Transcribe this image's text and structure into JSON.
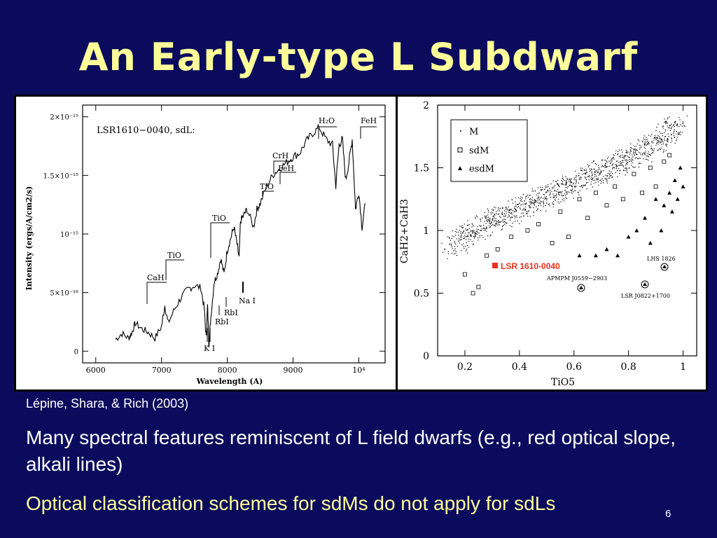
{
  "slide": {
    "title": "An Early-type L Subdwarf",
    "citation": "Lépine, Shara, & Rich (2003)",
    "para1": "Many spectral features reminiscent of L field dwarfs (e.g., red optical slope, alkali lines)",
    "para2": "Optical classification schemes for sdMs do not apply for sdLs",
    "page_number": "6"
  },
  "spectrum": {
    "label": "LSR1610−0040, sdL:",
    "ylabel": "Intensity (ergs/A/cm2/s)",
    "xlabel": "Wavelength (A)",
    "xticks": [
      "6000",
      "7000",
      "8000",
      "9000",
      "10⁴"
    ],
    "yticks": [
      "0",
      "5×10⁻¹⁶",
      "10⁻¹⁵",
      "1.5×10⁻¹⁵",
      "2×10⁻¹⁵"
    ],
    "features": {
      "cah": "CaH",
      "tio1": "TiO",
      "tio2": "TiO",
      "tio3": "TiO",
      "crh": "CrH",
      "feh1": "FeH",
      "h2o": "H₂O",
      "feh2": "FeH",
      "ki": "K I",
      "rbi1": "RbI",
      "rbi2": "RbI",
      "nai": "Na I"
    }
  },
  "color_plot": {
    "xlabel": "TiO5",
    "ylabel": "CaH2+CaH3",
    "xticks": [
      "0.2",
      "0.4",
      "0.6",
      "0.8",
      "1"
    ],
    "yticks": [
      "0",
      "0.5",
      "1",
      "1.5",
      "2"
    ],
    "legend": [
      "M",
      "sdM",
      "esdM"
    ],
    "highlight_label": "LSR 1610-0040",
    "annotations": {
      "lhs": "LHS 1826",
      "apmpm": "APMPM J0559−2903",
      "lsr": "LSR J0822+1700"
    },
    "highlight_color": "#e8301c"
  },
  "chart_data": [
    {
      "type": "line",
      "title": "LSR1610−0040, sdL:",
      "xlabel": "Wavelength (A)",
      "ylabel": "Intensity (ergs/A/cm2/s)",
      "xlim": [
        5800,
        10400
      ],
      "ylim": [
        -1e-16,
        2.1e-15
      ],
      "series": [
        {
          "x": [
            6300,
            6400,
            6500,
            6550,
            6600,
            6700,
            6800,
            6900,
            7000,
            7050,
            7100,
            7200,
            7300,
            7400,
            7500,
            7600,
            7650,
            7680,
            7700,
            7720,
            7750,
            7800,
            7850,
            7900,
            7950,
            8000,
            8050,
            8100,
            8150,
            8180,
            8200,
            8250,
            8300,
            8400,
            8450,
            8500,
            8600,
            8700,
            8800,
            8900,
            9000,
            9100,
            9200,
            9300,
            9400,
            9500,
            9600,
            9650,
            9700,
            9750,
            9800,
            9850,
            9900,
            9950,
            10000,
            10050,
            10100
          ],
          "y": [
            1e-16,
            1.5e-16,
            1.1e-16,
            1.6e-16,
            2.4e-16,
            1.9e-16,
            1.6e-16,
            1.1e-16,
            2.1e-16,
            3.9e-16,
            2.4e-16,
            3.6e-16,
            4.6e-16,
            5.3e-16,
            5.6e-16,
            5.4e-16,
            3.6e-16,
            1.1e-16,
            3.9e-16,
            6e-17,
            2.9e-16,
            5.9e-16,
            6.6e-16,
            7.9e-16,
            6.6e-16,
            8.6e-16,
            9.6e-16,
            1.06e-15,
            9.1e-16,
            7.9e-16,
            1.11e-15,
            1.16e-15,
            1.21e-15,
            1.06e-15,
            1.21e-15,
            1.26e-15,
            1.41e-15,
            1.51e-15,
            1.56e-15,
            1.61e-15,
            1.66e-15,
            1.69e-15,
            1.79e-15,
            1.86e-15,
            1.91e-15,
            1.81e-15,
            1.76e-15,
            1.41e-15,
            1.76e-15,
            1.81e-15,
            1.46e-15,
            1.61e-15,
            1.81e-15,
            1.21e-15,
            1.36e-15,
            1.06e-15,
            1.26e-15
          ]
        }
      ]
    },
    {
      "type": "scatter",
      "xlabel": "TiO5",
      "ylabel": "CaH2+CaH3",
      "xlim": [
        0.1,
        1.05
      ],
      "ylim": [
        0,
        2
      ],
      "legend_position": "top-left",
      "series": [
        {
          "name": "M",
          "x": [
            0.15,
            0.2,
            0.25,
            0.3,
            0.35,
            0.4,
            0.45,
            0.5,
            0.55,
            0.6,
            0.65,
            0.7,
            0.75,
            0.8,
            0.85,
            0.9,
            0.95,
            0.98
          ],
          "y": [
            0.85,
            0.95,
            1.02,
            1.08,
            1.12,
            1.17,
            1.22,
            1.28,
            1.32,
            1.37,
            1.42,
            1.47,
            1.52,
            1.57,
            1.63,
            1.7,
            1.78,
            1.85
          ]
        },
        {
          "name": "sdM",
          "x": [
            0.2,
            0.25,
            0.23,
            0.28,
            0.32,
            0.37,
            0.43,
            0.47,
            0.52,
            0.55,
            0.58,
            0.62,
            0.65,
            0.68,
            0.72,
            0.75,
            0.78,
            0.82,
            0.85,
            0.88,
            0.9,
            0.93,
            0.95
          ],
          "y": [
            0.65,
            0.55,
            0.5,
            0.8,
            0.85,
            0.95,
            1.0,
            1.05,
            0.9,
            1.15,
            0.95,
            1.25,
            1.1,
            1.3,
            1.2,
            1.35,
            1.25,
            1.45,
            1.3,
            1.5,
            1.35,
            1.55,
            1.6
          ]
        },
        {
          "name": "esdM",
          "x": [
            0.62,
            0.68,
            0.72,
            0.76,
            0.8,
            0.83,
            0.86,
            0.88,
            0.9,
            0.92,
            0.93,
            0.95,
            0.96,
            0.97,
            0.98,
            0.99,
            1.0
          ],
          "y": [
            0.8,
            0.8,
            0.85,
            0.8,
            0.95,
            1.0,
            1.1,
            0.9,
            1.25,
            1.0,
            1.2,
            1.3,
            1.15,
            1.4,
            1.25,
            1.5,
            1.35
          ]
        }
      ]
    }
  ]
}
